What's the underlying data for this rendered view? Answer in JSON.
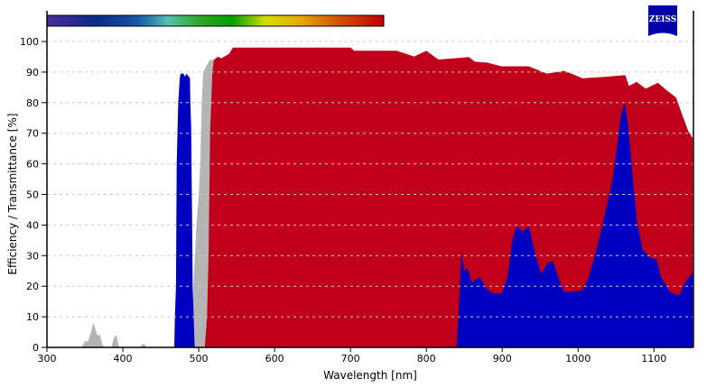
{
  "chart_data": {
    "type": "area",
    "title": "",
    "xlabel": "Wavelength [nm]",
    "ylabel": "Efficiency / Transmittance [%]",
    "xlim": [
      300,
      1152
    ],
    "ylim": [
      0,
      100
    ],
    "xticks": [
      300,
      400,
      500,
      600,
      700,
      800,
      900,
      1000,
      1100
    ],
    "yticks": [
      0,
      10,
      20,
      30,
      40,
      50,
      60,
      70,
      80,
      90,
      100
    ],
    "grid": "horizontal dashed",
    "legend": "none",
    "colorbar_range_nm": [
      300,
      743
    ],
    "series": [
      {
        "color": "#b4b4b4",
        "segments": [
          [
            [
              345,
              0
            ],
            [
              348,
              1
            ],
            [
              350,
              2
            ],
            [
              354,
              2
            ],
            [
              357,
              4
            ],
            [
              359,
              6
            ],
            [
              361,
              8
            ],
            [
              364,
              6
            ],
            [
              366,
              4
            ],
            [
              370,
              4
            ],
            [
              373,
              1
            ],
            [
              376,
              0
            ]
          ],
          [
            [
              385,
              0
            ],
            [
              387,
              2
            ],
            [
              390,
              4
            ],
            [
              392,
              3.5
            ],
            [
              394,
              1
            ],
            [
              396,
              0
            ]
          ],
          [
            [
              423,
              0
            ],
            [
              425,
              1
            ],
            [
              429,
              1
            ],
            [
              431,
              0
            ]
          ],
          [
            [
              491,
              0
            ],
            [
              493,
              20
            ],
            [
              495,
              30
            ],
            [
              497,
              40
            ],
            [
              500,
              50
            ],
            [
              502,
              60
            ],
            [
              504,
              80
            ],
            [
              506,
              90
            ],
            [
              510,
              92
            ],
            [
              515,
              94
            ],
            [
              520,
              94
            ],
            [
              524,
              0
            ]
          ]
        ]
      },
      {
        "color": "#c0001a",
        "segments": [
          [
            [
              508,
              0
            ],
            [
              511,
              10
            ],
            [
              513,
              30
            ],
            [
              515,
              70
            ],
            [
              518,
              90
            ],
            [
              520,
              94
            ],
            [
              525,
              95
            ],
            [
              530,
              94.5
            ],
            [
              540,
              96
            ],
            [
              545,
              98
            ],
            [
              700,
              98
            ],
            [
              705,
              97
            ],
            [
              745,
              97
            ],
            [
              761,
              97
            ],
            [
              784,
              95.1
            ],
            [
              800,
              97
            ],
            [
              816,
              94.1
            ],
            [
              856,
              94.9
            ],
            [
              864,
              93.4
            ],
            [
              880,
              93.1
            ],
            [
              899,
              91.9
            ],
            [
              935,
              91.9
            ],
            [
              959,
              89.5
            ],
            [
              982,
              90.4
            ],
            [
              1006,
              88
            ],
            [
              1038,
              88.5
            ],
            [
              1062,
              89
            ],
            [
              1067,
              85.5
            ],
            [
              1077,
              86.8
            ],
            [
              1089,
              84.6
            ],
            [
              1105,
              86.5
            ],
            [
              1117,
              84
            ],
            [
              1129,
              81.7
            ],
            [
              1137,
              76.2
            ],
            [
              1145,
              70.8
            ],
            [
              1151,
              68.4
            ],
            [
              1151,
              0
            ]
          ]
        ]
      },
      {
        "color": "#0000c0",
        "segments": [
          [
            [
              467.8,
              0
            ],
            [
              468.6,
              10
            ],
            [
              470,
              20
            ],
            [
              470.5,
              40
            ],
            [
              471,
              60
            ],
            [
              473,
              80
            ],
            [
              475,
              88
            ],
            [
              476,
              89.5
            ],
            [
              480,
              89.5
            ],
            [
              482,
              88.5
            ],
            [
              484,
              89.5
            ],
            [
              488.5,
              88
            ],
            [
              489,
              80
            ],
            [
              490,
              72
            ],
            [
              491.3,
              40
            ],
            [
              492,
              20
            ],
            [
              494.7,
              0
            ]
          ],
          [
            [
              840,
              0
            ],
            [
              844,
              19.2
            ],
            [
              846,
              31
            ],
            [
              850,
              25
            ],
            [
              854,
              26
            ],
            [
              860,
              21.2
            ],
            [
              870,
              23
            ],
            [
              879.5,
              19.2
            ],
            [
              887.5,
              17.7
            ],
            [
              899.4,
              17.7
            ],
            [
              907,
              23
            ],
            [
              913,
              34.8
            ],
            [
              919,
              39.8
            ],
            [
              927,
              37.8
            ],
            [
              935,
              39.8
            ],
            [
              943,
              31
            ],
            [
              951,
              24
            ],
            [
              961,
              28
            ],
            [
              967,
              28
            ],
            [
              975,
              22
            ],
            [
              981,
              18.2
            ],
            [
              991,
              18.2
            ],
            [
              1006,
              18.7
            ],
            [
              1014,
              23
            ],
            [
              1022,
              30
            ],
            [
              1030,
              37.8
            ],
            [
              1038,
              46.6
            ],
            [
              1046,
              55.5
            ],
            [
              1052,
              67.3
            ],
            [
              1056,
              75.2
            ],
            [
              1061,
              80.2
            ],
            [
              1065.5,
              73.2
            ],
            [
              1069.5,
              62.5
            ],
            [
              1073,
              52.6
            ],
            [
              1077.5,
              40.8
            ],
            [
              1081,
              36.9
            ],
            [
              1085,
              31.9
            ],
            [
              1097,
              29
            ],
            [
              1103,
              29
            ],
            [
              1109,
              23.1
            ],
            [
              1121,
              18.2
            ],
            [
              1133,
              16.8
            ],
            [
              1141,
              21.2
            ],
            [
              1151,
              24.6
            ],
            [
              1151,
              0
            ]
          ]
        ]
      }
    ]
  },
  "logo": {
    "text": "ZEISS",
    "color": "#0000a8"
  }
}
